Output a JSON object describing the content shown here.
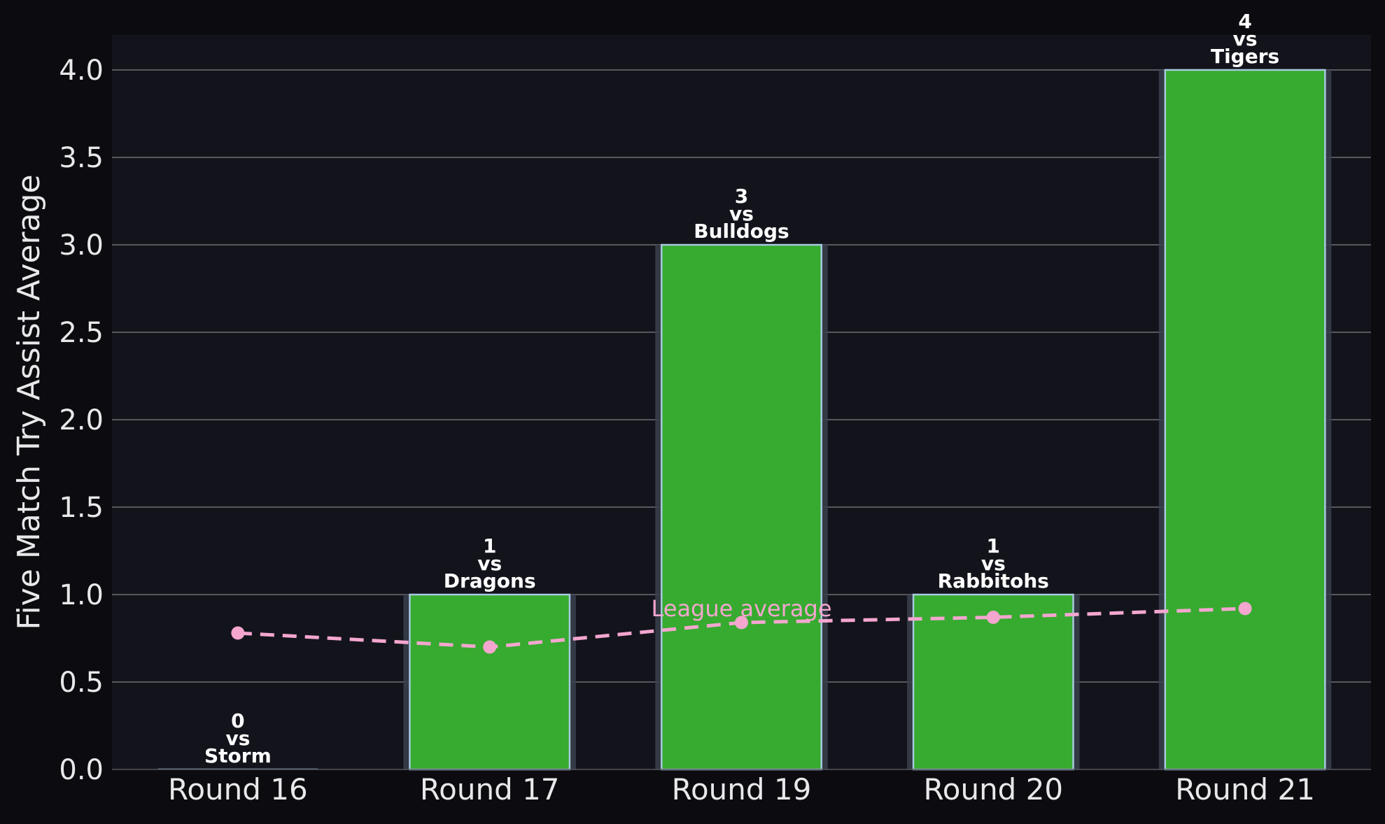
{
  "chart_data": {
    "type": "bar",
    "ylabel": "Five Match Try Assist Average",
    "xlabel": "",
    "title": "",
    "ylim": [
      0,
      4.2
    ],
    "yticks": [
      "0.0",
      "0.5",
      "1.0",
      "1.5",
      "2.0",
      "2.5",
      "3.0",
      "3.5",
      "4.0"
    ],
    "categories": [
      "Round 16",
      "Round 17",
      "Round 19",
      "Round 20",
      "Round 21"
    ],
    "values": [
      0,
      1,
      3,
      1,
      4
    ],
    "annotations": [
      {
        "value": "0",
        "vs": "vs",
        "opponent": "Storm"
      },
      {
        "value": "1",
        "vs": "vs",
        "opponent": "Dragons"
      },
      {
        "value": "3",
        "vs": "vs",
        "opponent": "Bulldogs"
      },
      {
        "value": "1",
        "vs": "vs",
        "opponent": "Rabbitohs"
      },
      {
        "value": "4",
        "vs": "vs",
        "opponent": "Tigers"
      }
    ],
    "league_average": {
      "label": "League average",
      "values": [
        0.78,
        0.7,
        0.84,
        0.87,
        0.92
      ]
    },
    "grid": true,
    "colors": {
      "background": "#0c0c10",
      "plot_background": "#13141b",
      "bar_fill": "#36ab2f",
      "bar_edge": "#a9c9e0",
      "bar_shadow": "#3a3f4c",
      "grid": "#6c6e75",
      "text": "#e8e8ea",
      "league_line": "#f4a6cf",
      "annotation_text": "#ffffff"
    }
  }
}
